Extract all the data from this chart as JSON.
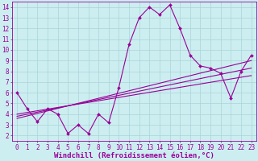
{
  "xlabel": "Windchill (Refroidissement éolien,°C)",
  "xlim": [
    -0.5,
    23.5
  ],
  "ylim": [
    1.5,
    14.5
  ],
  "xticks": [
    0,
    1,
    2,
    3,
    4,
    5,
    6,
    7,
    8,
    9,
    10,
    11,
    12,
    13,
    14,
    15,
    16,
    17,
    18,
    19,
    20,
    21,
    22,
    23
  ],
  "yticks": [
    2,
    3,
    4,
    5,
    6,
    7,
    8,
    9,
    10,
    11,
    12,
    13,
    14
  ],
  "bg_color": "#cceef0",
  "grid_color": "#aad4d8",
  "line_color": "#990099",
  "main_data_x": [
    0,
    1,
    2,
    3,
    4,
    5,
    6,
    7,
    8,
    9,
    10,
    11,
    12,
    13,
    14,
    15,
    16,
    17,
    18,
    19,
    20,
    21,
    22,
    23
  ],
  "main_data_y": [
    6.0,
    4.5,
    3.3,
    4.5,
    4.0,
    2.2,
    3.0,
    2.2,
    4.0,
    3.2,
    6.5,
    10.5,
    13.0,
    14.0,
    13.3,
    14.2,
    12.0,
    9.5,
    8.5,
    8.3,
    7.8,
    5.5,
    8.0,
    9.5
  ],
  "line1_x": [
    0,
    23
  ],
  "line1_y": [
    3.6,
    9.0
  ],
  "line2_x": [
    0,
    23
  ],
  "line2_y": [
    3.8,
    8.3
  ],
  "line3_x": [
    0,
    23
  ],
  "line3_y": [
    4.0,
    7.6
  ],
  "tick_fontsize": 5.5,
  "xlabel_fontsize": 6.5
}
